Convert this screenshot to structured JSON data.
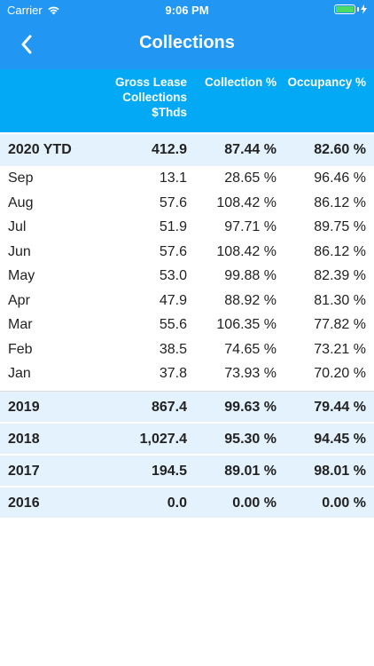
{
  "status": {
    "carrier": "Carrier",
    "time": "9:06 PM",
    "wifi_icon": "wifi-icon",
    "battery_icon": "battery-icon"
  },
  "nav": {
    "title": "Collections",
    "back_icon": "chevron-left-icon"
  },
  "colors": {
    "nav": "#2196F3",
    "header": "#03A9F4",
    "row_highlight": "#E3F2FD",
    "battery": "#4CD964"
  },
  "table": {
    "headers": {
      "gross": [
        "Gross Lease",
        "Collections",
        "$Thds"
      ],
      "collection": "Collection %",
      "occupancy": "Occupancy %"
    },
    "ytd": {
      "label": "2020 YTD",
      "gross": "412.9",
      "collection": "87.44 %",
      "occupancy": "82.60 %"
    },
    "months": [
      {
        "label": "Sep",
        "gross": "13.1",
        "collection": "28.65 %",
        "occupancy": "96.46 %"
      },
      {
        "label": "Aug",
        "gross": "57.6",
        "collection": "108.42 %",
        "occupancy": "86.12 %"
      },
      {
        "label": "Jul",
        "gross": "51.9",
        "collection": "97.71 %",
        "occupancy": "89.75 %"
      },
      {
        "label": "Jun",
        "gross": "57.6",
        "collection": "108.42 %",
        "occupancy": "86.12 %"
      },
      {
        "label": "May",
        "gross": "53.0",
        "collection": "99.88 %",
        "occupancy": "82.39 %"
      },
      {
        "label": "Apr",
        "gross": "47.9",
        "collection": "88.92 %",
        "occupancy": "81.30 %"
      },
      {
        "label": "Mar",
        "gross": "55.6",
        "collection": "106.35 %",
        "occupancy": "77.82 %"
      },
      {
        "label": "Feb",
        "gross": "38.5",
        "collection": "74.65 %",
        "occupancy": "73.21 %"
      },
      {
        "label": "Jan",
        "gross": "37.8",
        "collection": "73.93 %",
        "occupancy": "70.20 %"
      }
    ],
    "years": [
      {
        "label": "2019",
        "gross": "867.4",
        "collection": "99.63 %",
        "occupancy": "79.44 %"
      },
      {
        "label": "2018",
        "gross": "1,027.4",
        "collection": "95.30 %",
        "occupancy": "94.45 %"
      },
      {
        "label": "2017",
        "gross": "194.5",
        "collection": "89.01 %",
        "occupancy": "98.01 %"
      },
      {
        "label": "2016",
        "gross": "0.0",
        "collection": "0.00 %",
        "occupancy": "0.00 %"
      }
    ]
  }
}
